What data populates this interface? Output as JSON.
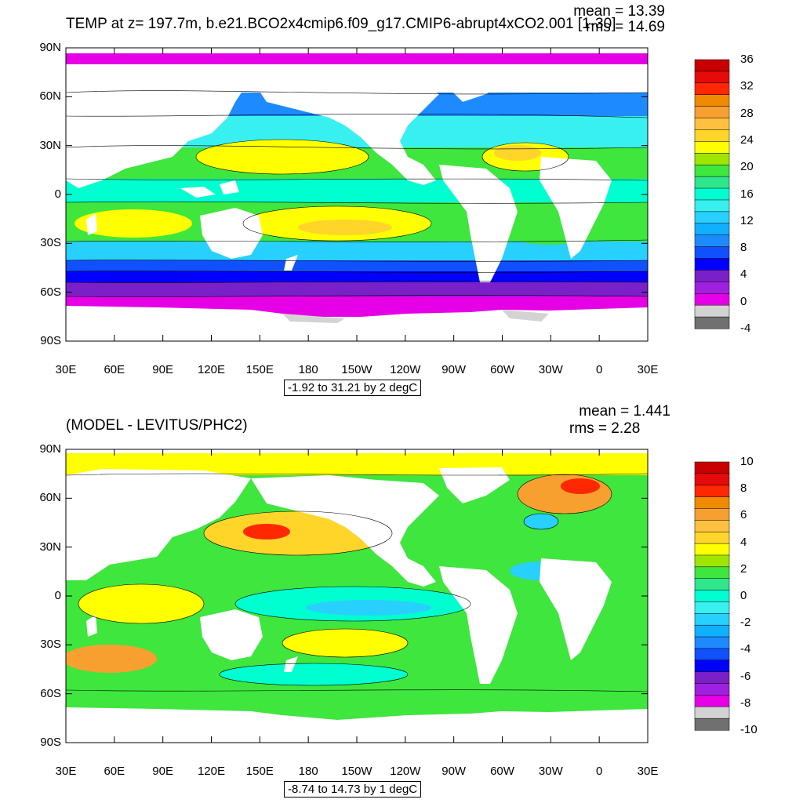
{
  "panels": [
    {
      "title": "TEMP at z= 197.7m, b.e21.BCO2x4cmip6.f09_g17.CMIP6-abrupt4xCO2.001 [1-30]",
      "mean": "mean = 13.39",
      "rms": "rms = 14.69",
      "range": "-1.92 to 31.21 by 2 degC",
      "colorbar_labels": [
        "36",
        "32",
        "28",
        "24",
        "20",
        "16",
        "12",
        "8",
        "4",
        "0",
        "-4"
      ],
      "colorbar_colors": [
        "#c80000",
        "#e60a0a",
        "#ff2800",
        "#f08a00",
        "#f7a030",
        "#ffc040",
        "#ffd52a",
        "#ffff00",
        "#9ee600",
        "#3ee63e",
        "#2ee68c",
        "#00ffd0",
        "#38f0ef",
        "#28d0ff",
        "#10b0ff",
        "#1e8aff",
        "#1050ff",
        "#0000ff",
        "#7a20c8",
        "#a020e0",
        "#e600e6",
        "#d3d3d3",
        "#707070"
      ]
    },
    {
      "title": "(MODEL - LEVITUS/PHC2)",
      "mean": "mean = 1.441",
      "rms": "rms = 2.28",
      "range": "-8.74 to 14.73 by 1 degC",
      "colorbar_labels": [
        "10",
        "8",
        "6",
        "4",
        "2",
        "0",
        "-2",
        "-4",
        "-6",
        "-8",
        "-10"
      ],
      "colorbar_colors": [
        "#c80000",
        "#e60a0a",
        "#ff2800",
        "#f08a00",
        "#f7a030",
        "#ffc040",
        "#ffd52a",
        "#ffff00",
        "#9ee600",
        "#3ee63e",
        "#2ee68c",
        "#00ffd0",
        "#38f0ef",
        "#28d0ff",
        "#10b0ff",
        "#1e8aff",
        "#1050ff",
        "#0000ff",
        "#7a20c8",
        "#a020e0",
        "#e600e6",
        "#d3d3d3",
        "#707070"
      ]
    }
  ],
  "lat_labels": [
    "90N",
    "60N",
    "30N",
    "0",
    "30S",
    "60S",
    "90S"
  ],
  "lon_labels": [
    "30E",
    "60E",
    "90E",
    "120E",
    "150E",
    "180",
    "150W",
    "120W",
    "90W",
    "60W",
    "30W",
    "0",
    "30E"
  ]
}
